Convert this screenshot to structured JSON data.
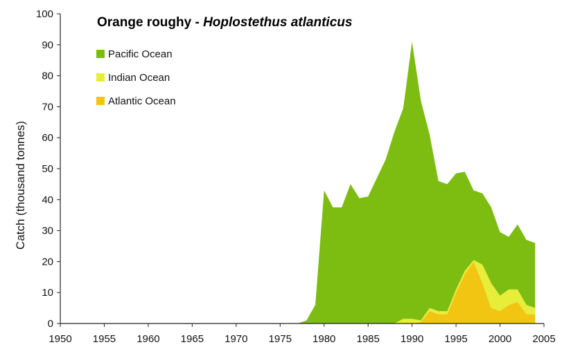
{
  "chart_data": {
    "type": "area",
    "stacked": true,
    "title_main": "Orange roughy - ",
    "title_species": "Hoplostethus atlanticus",
    "xlabel": "",
    "ylabel": "Catch  (thousand tonnes)",
    "xlim": [
      1950,
      2005
    ],
    "ylim": [
      0,
      100
    ],
    "x_ticks": [
      "1950",
      "1955",
      "1960",
      "1965",
      "1970",
      "1975",
      "1980",
      "1985",
      "1990",
      "1995",
      "2000",
      "2005"
    ],
    "y_ticks": [
      "0",
      "10",
      "20",
      "30",
      "40",
      "50",
      "60",
      "70",
      "80",
      "90",
      "100"
    ],
    "legend_position": "top-left",
    "colors": {
      "Pacific Ocean": "#7dbd12",
      "Indian Ocean": "#e6ee3a",
      "Atlantic Ocean": "#f2c513"
    },
    "x": [
      1950,
      1977,
      1978,
      1979,
      1980,
      1981,
      1982,
      1983,
      1984,
      1985,
      1986,
      1987,
      1988,
      1989,
      1990,
      1991,
      1992,
      1993,
      1994,
      1995,
      1996,
      1997,
      1998,
      1999,
      2000,
      2001,
      2002,
      2003,
      2004
    ],
    "series": [
      {
        "name": "Atlantic Ocean",
        "values": [
          0,
          0,
          0,
          0,
          0,
          0,
          0,
          0,
          0,
          0,
          0,
          0,
          0,
          0,
          0,
          0.5,
          4,
          3,
          3,
          10,
          16,
          20,
          13,
          5,
          4,
          6,
          7,
          3,
          3
        ]
      },
      {
        "name": "Indian Ocean",
        "values": [
          0,
          0,
          0,
          0,
          0,
          0,
          0,
          0,
          0,
          0,
          0,
          0,
          0,
          1.5,
          1.5,
          0.5,
          1,
          1,
          1,
          1,
          1,
          0.5,
          6,
          8,
          5,
          5,
          4,
          3,
          2
        ]
      },
      {
        "name": "Pacific Ocean",
        "values": [
          0,
          0,
          1,
          6,
          43,
          37.5,
          37.5,
          45,
          40.5,
          41,
          47,
          53,
          62,
          68,
          89.5,
          71,
          56,
          42,
          41,
          37.5,
          32,
          22.5,
          23,
          24.5,
          20.5,
          17,
          21,
          21,
          21
        ]
      }
    ]
  }
}
